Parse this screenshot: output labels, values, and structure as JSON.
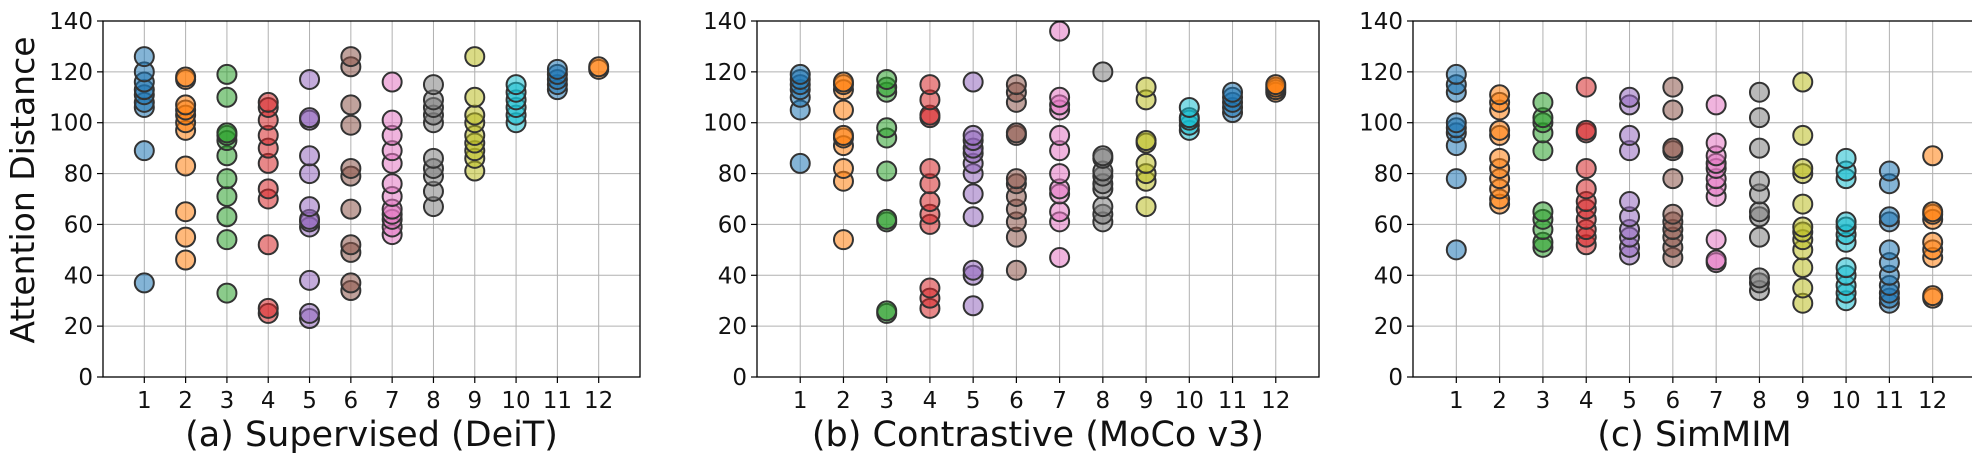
{
  "figure": {
    "ylabel": "Attention Distance"
  },
  "chart_data": [
    {
      "type": "scatter",
      "xlabel": "(a) Supervised (DeiT)",
      "ylim": [
        0,
        140
      ],
      "yticks": [
        0,
        20,
        40,
        60,
        80,
        100,
        120,
        140
      ],
      "categories": [
        "1",
        "2",
        "3",
        "4",
        "5",
        "6",
        "7",
        "8",
        "9",
        "10",
        "11",
        "12"
      ],
      "colors": [
        "#1f77b4",
        "#ff7f0e",
        "#2ca02c",
        "#d62728",
        "#9467bd",
        "#8c564b",
        "#e377c2",
        "#7f7f7f",
        "#bcbd22",
        "#17becf",
        "#1f77b4",
        "#ff7f0e"
      ],
      "series": [
        {
          "name": "1",
          "values": [
            37,
            89,
            106,
            108,
            111,
            113,
            116,
            120,
            126
          ]
        },
        {
          "name": "2",
          "values": [
            46,
            55,
            65,
            83,
            97,
            100,
            103,
            105,
            107,
            117,
            118
          ]
        },
        {
          "name": "3",
          "values": [
            33,
            54,
            63,
            71,
            78,
            87,
            93,
            95,
            96,
            110,
            119
          ]
        },
        {
          "name": "4",
          "values": [
            25,
            27,
            52,
            70,
            74,
            84,
            90,
            95,
            101,
            106,
            108
          ]
        },
        {
          "name": "5",
          "values": [
            23,
            25,
            38,
            59,
            61,
            62,
            67,
            80,
            87,
            101,
            102,
            117
          ]
        },
        {
          "name": "6",
          "values": [
            34,
            37,
            49,
            52,
            66,
            79,
            82,
            99,
            107,
            122,
            126
          ]
        },
        {
          "name": "7",
          "values": [
            56,
            59,
            62,
            64,
            66,
            71,
            76,
            84,
            89,
            95,
            101,
            116
          ]
        },
        {
          "name": "8",
          "values": [
            67,
            73,
            79,
            82,
            86,
            100,
            103,
            106,
            109,
            115
          ]
        },
        {
          "name": "9",
          "values": [
            81,
            86,
            89,
            92,
            95,
            100,
            103,
            110,
            126
          ]
        },
        {
          "name": "10",
          "values": [
            100,
            103,
            106,
            109,
            112,
            115
          ]
        },
        {
          "name": "11",
          "values": [
            113,
            115,
            117,
            119,
            121
          ]
        },
        {
          "name": "12",
          "values": [
            121,
            122
          ]
        }
      ]
    },
    {
      "type": "scatter",
      "xlabel": "(b) Contrastive (MoCo v3)",
      "ylim": [
        0,
        140
      ],
      "yticks": [
        0,
        20,
        40,
        60,
        80,
        100,
        120,
        140
      ],
      "categories": [
        "1",
        "2",
        "3",
        "4",
        "5",
        "6",
        "7",
        "8",
        "9",
        "10",
        "11",
        "12"
      ],
      "colors": [
        "#1f77b4",
        "#ff7f0e",
        "#2ca02c",
        "#d62728",
        "#9467bd",
        "#8c564b",
        "#e377c2",
        "#7f7f7f",
        "#bcbd22",
        "#17becf",
        "#1f77b4",
        "#ff7f0e"
      ],
      "series": [
        {
          "name": "1",
          "values": [
            84,
            105,
            110,
            113,
            115,
            117,
            119
          ]
        },
        {
          "name": "2",
          "values": [
            54,
            77,
            82,
            91,
            94,
            95,
            105,
            113,
            115,
            116
          ]
        },
        {
          "name": "3",
          "values": [
            25,
            26,
            61,
            62,
            81,
            94,
            98,
            112,
            114,
            117
          ]
        },
        {
          "name": "4",
          "values": [
            27,
            31,
            35,
            60,
            64,
            69,
            76,
            82,
            102,
            103,
            109,
            115
          ]
        },
        {
          "name": "5",
          "values": [
            28,
            40,
            42,
            63,
            72,
            80,
            84,
            88,
            90,
            93,
            95,
            116
          ]
        },
        {
          "name": "6",
          "values": [
            42,
            55,
            61,
            66,
            71,
            76,
            78,
            95,
            96,
            108,
            112,
            115
          ]
        },
        {
          "name": "7",
          "values": [
            47,
            61,
            65,
            72,
            74,
            80,
            89,
            95,
            105,
            107,
            110,
            136
          ]
        },
        {
          "name": "8",
          "values": [
            61,
            64,
            67,
            74,
            76,
            79,
            81,
            86,
            87,
            120
          ]
        },
        {
          "name": "9",
          "values": [
            67,
            77,
            80,
            84,
            92,
            93,
            109,
            114
          ]
        },
        {
          "name": "10",
          "values": [
            97,
            99,
            101,
            102,
            106
          ]
        },
        {
          "name": "11",
          "values": [
            104,
            106,
            108,
            110,
            112
          ]
        },
        {
          "name": "12",
          "values": [
            112,
            113,
            114,
            115
          ]
        }
      ]
    },
    {
      "type": "scatter",
      "xlabel": "(c) SimMIM",
      "ylim": [
        0,
        140
      ],
      "yticks": [
        0,
        20,
        40,
        60,
        80,
        100,
        120,
        140
      ],
      "categories": [
        "1",
        "2",
        "3",
        "4",
        "5",
        "6",
        "7",
        "8",
        "9",
        "10",
        "11",
        "12"
      ],
      "colors": [
        "#1f77b4",
        "#ff7f0e",
        "#2ca02c",
        "#d62728",
        "#9467bd",
        "#8c564b",
        "#e377c2",
        "#7f7f7f",
        "#bcbd22",
        "#17becf",
        "#1f77b4",
        "#ff7f0e"
      ],
      "series": [
        {
          "name": "1",
          "values": [
            50,
            78,
            91,
            96,
            98,
            100,
            112,
            115,
            119
          ]
        },
        {
          "name": "2",
          "values": [
            68,
            70,
            74,
            78,
            82,
            86,
            95,
            97,
            105,
            108,
            111
          ]
        },
        {
          "name": "3",
          "values": [
            51,
            53,
            58,
            62,
            65,
            89,
            96,
            100,
            102,
            108
          ]
        },
        {
          "name": "4",
          "values": [
            52,
            55,
            58,
            62,
            66,
            69,
            74,
            82,
            96,
            97,
            114
          ]
        },
        {
          "name": "5",
          "values": [
            48,
            51,
            55,
            58,
            63,
            69,
            89,
            95,
            107,
            110
          ]
        },
        {
          "name": "6",
          "values": [
            47,
            51,
            55,
            58,
            61,
            64,
            78,
            89,
            90,
            105,
            114
          ]
        },
        {
          "name": "7",
          "values": [
            45,
            46,
            54,
            71,
            75,
            78,
            82,
            84,
            87,
            92,
            107
          ]
        },
        {
          "name": "8",
          "values": [
            34,
            37,
            39,
            55,
            63,
            65,
            72,
            77,
            90,
            102,
            112
          ]
        },
        {
          "name": "9",
          "values": [
            29,
            35,
            43,
            50,
            54,
            57,
            59,
            68,
            80,
            82,
            95,
            116
          ]
        },
        {
          "name": "10",
          "values": [
            30,
            33,
            36,
            40,
            43,
            53,
            56,
            59,
            61,
            78,
            81,
            86
          ]
        },
        {
          "name": "11",
          "values": [
            29,
            31,
            33,
            36,
            40,
            45,
            50,
            61,
            63,
            76,
            81
          ]
        },
        {
          "name": "12",
          "values": [
            31,
            32,
            47,
            50,
            53,
            62,
            64,
            65,
            87
          ]
        }
      ]
    }
  ]
}
